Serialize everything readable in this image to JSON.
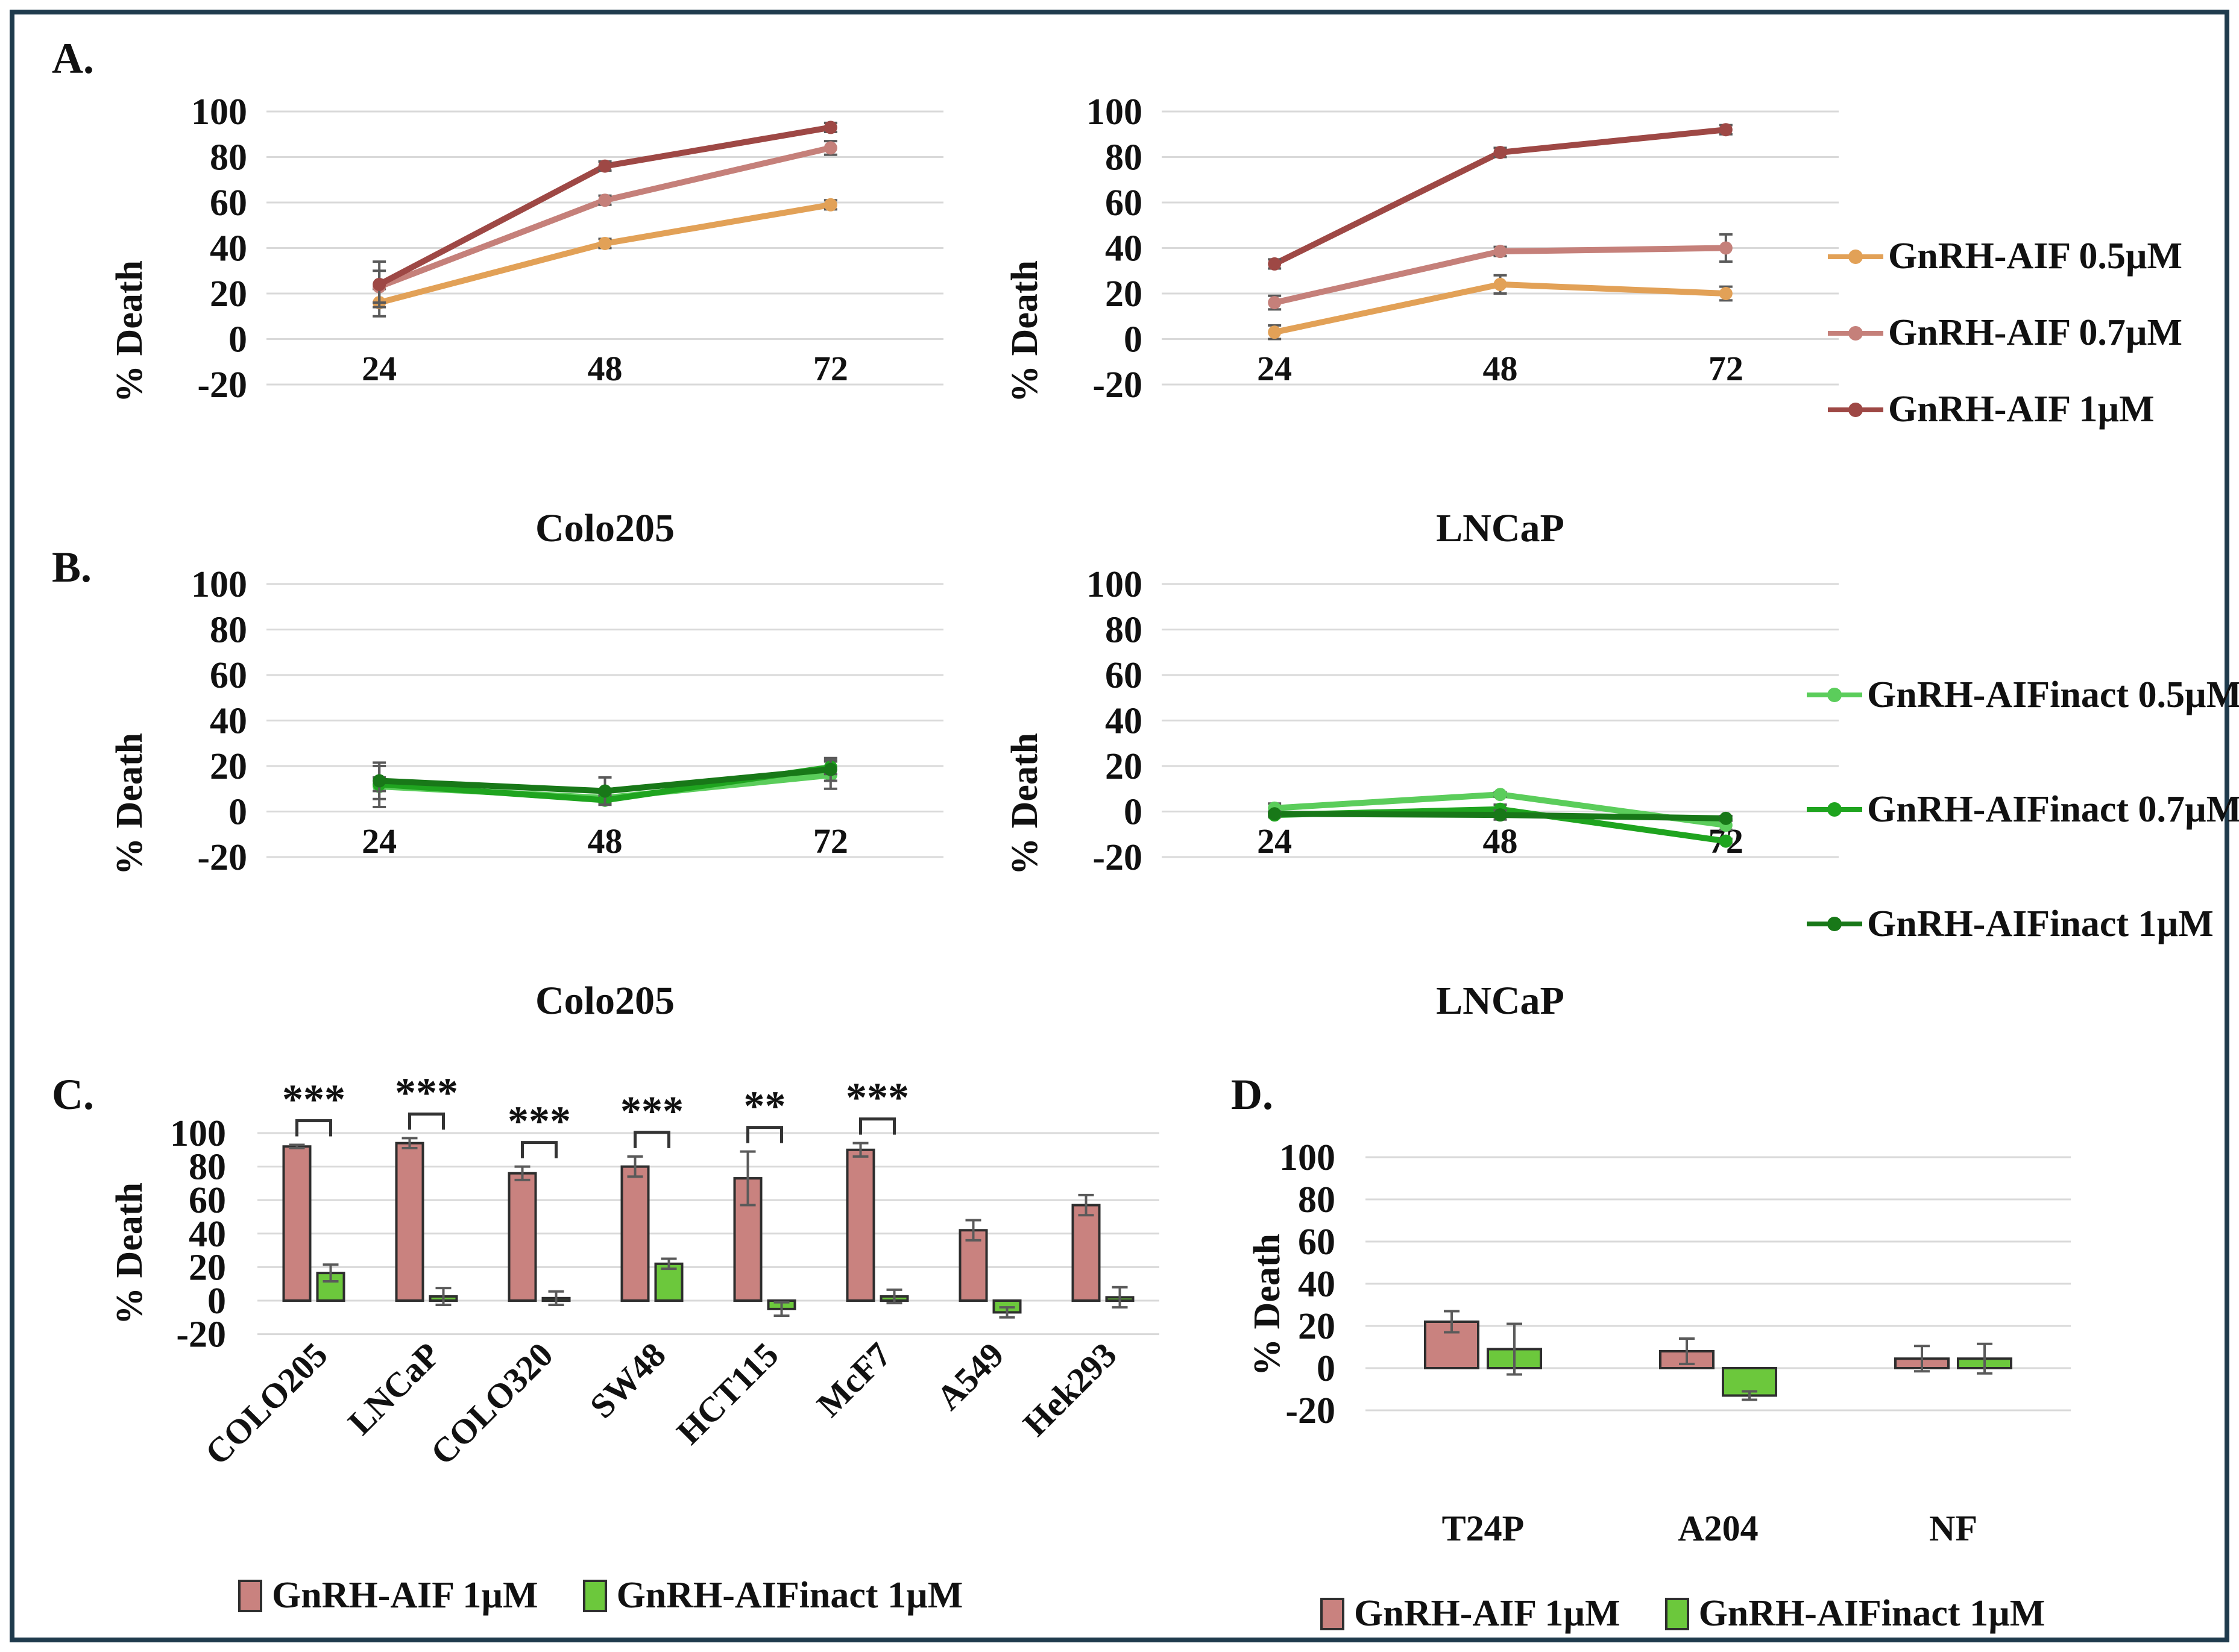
{
  "figure": {
    "panel_labels": {
      "A": "A.",
      "B": "B.",
      "C": "C.",
      "D": "D."
    }
  },
  "colors": {
    "frame_border": "#1F3B4D",
    "gridline": "#D9D9D9",
    "error_bar": "#5A5A5A",
    "bar_border": "#2E2E2E",
    "aif_05": "#E2A157",
    "aif_07": "#C5807A",
    "aif_1": "#9E4845",
    "inact_05": "#5BCD5B",
    "inact_07": "#1FA41F",
    "inact_1": "#187818",
    "bar_red": "#C9827F",
    "bar_green": "#6CC83C"
  },
  "legends": {
    "A": {
      "items": [
        {
          "label": "GnRH-AIF 0.5µM",
          "color": "#E2A157"
        },
        {
          "label": "GnRH-AIF 0.7µM",
          "color": "#C5807A"
        },
        {
          "label": "GnRH-AIF 1µM",
          "color": "#9E4845"
        }
      ]
    },
    "B": {
      "items": [
        {
          "label": "GnRH-AIFinact 0.5µM",
          "color": "#5BCD5B"
        },
        {
          "label": "GnRH-AIFinact 0.7µM",
          "color": "#1FA41F"
        },
        {
          "label": "GnRH-AIFinact 1µM",
          "color": "#187818"
        }
      ]
    },
    "C": {
      "items": [
        {
          "label": "GnRH-AIF 1µM",
          "color": "#C9827F"
        },
        {
          "label": "GnRH-AIFinact 1µM",
          "color": "#6CC83C"
        }
      ]
    },
    "D": {
      "items": [
        {
          "label": "GnRH-AIF 1µM",
          "color": "#C9827F"
        },
        {
          "label": "GnRH-AIFinact 1µM",
          "color": "#6CC83C"
        }
      ]
    }
  },
  "chart_data": [
    {
      "id": "A-colo205",
      "type": "line",
      "title": "Colo205",
      "ylabel": "% Death",
      "ylim": [
        -20,
        100
      ],
      "yticks": [
        100,
        80,
        60,
        40,
        20,
        0,
        -20
      ],
      "x": [
        24,
        48,
        72
      ],
      "grid": true,
      "legend_position": "right-of-panel",
      "series": [
        {
          "name": "GnRH-AIF 0.5µM",
          "color": "#E2A157",
          "values": [
            16,
            42,
            59
          ],
          "errors": [
            6,
            2,
            2
          ]
        },
        {
          "name": "GnRH-AIF 0.7µM",
          "color": "#C5807A",
          "values": [
            23,
            61,
            84
          ],
          "errors": [
            7,
            2,
            3
          ]
        },
        {
          "name": "GnRH-AIF 1µM",
          "color": "#9E4845",
          "values": [
            24,
            76,
            93
          ],
          "errors": [
            10,
            2,
            2
          ]
        }
      ]
    },
    {
      "id": "A-lncap",
      "type": "line",
      "title": "LNCaP",
      "ylabel": "% Death",
      "ylim": [
        -20,
        100
      ],
      "yticks": [
        100,
        80,
        60,
        40,
        20,
        0,
        -20
      ],
      "x": [
        24,
        48,
        72
      ],
      "grid": true,
      "series": [
        {
          "name": "GnRH-AIF 0.5µM",
          "color": "#E2A157",
          "values": [
            3,
            24,
            20
          ],
          "errors": [
            3,
            4,
            3
          ]
        },
        {
          "name": "GnRH-AIF 0.7µM",
          "color": "#C5807A",
          "values": [
            16,
            38.5,
            40
          ],
          "errors": [
            3,
            2,
            6
          ]
        },
        {
          "name": "GnRH-AIF 1µM",
          "color": "#9E4845",
          "values": [
            33,
            82,
            92
          ],
          "errors": [
            2,
            2,
            2
          ]
        }
      ]
    },
    {
      "id": "B-colo205",
      "type": "line",
      "title": "Colo205",
      "ylabel": "% Death",
      "ylim": [
        -20,
        100
      ],
      "yticks": [
        100,
        80,
        60,
        40,
        20,
        0,
        -20
      ],
      "x": [
        24,
        48,
        72
      ],
      "grid": true,
      "series": [
        {
          "name": "GnRH-AIFinact 0.5µM",
          "color": "#5BCD5B",
          "values": [
            11,
            6,
            16
          ],
          "errors": [
            9,
            2,
            6
          ]
        },
        {
          "name": "GnRH-AIFinact 0.7µM",
          "color": "#1FA41F",
          "values": [
            12,
            5,
            19.5
          ],
          "errors": [
            3,
            2,
            3
          ]
        },
        {
          "name": "GnRH-AIFinact 1µM",
          "color": "#187818",
          "values": [
            13.5,
            9,
            18.5
          ],
          "errors": [
            8,
            6,
            5
          ]
        }
      ]
    },
    {
      "id": "B-lncap",
      "type": "line",
      "title": "LNCaP",
      "ylabel": "% Death",
      "ylim": [
        -20,
        100
      ],
      "yticks": [
        100,
        80,
        60,
        40,
        20,
        0,
        -20
      ],
      "x": [
        24,
        48,
        72
      ],
      "grid": true,
      "series": [
        {
          "name": "GnRH-AIFinact 0.5µM",
          "color": "#5BCD5B",
          "values": [
            1.5,
            7.5,
            -6
          ],
          "errors": [
            2,
            1,
            2
          ]
        },
        {
          "name": "GnRH-AIFinact 0.7µM",
          "color": "#1FA41F",
          "values": [
            -1.5,
            1,
            -13
          ],
          "errors": [
            1,
            2,
            1
          ]
        },
        {
          "name": "GnRH-AIFinact 1µM",
          "color": "#187818",
          "values": [
            -1,
            -1.5,
            -3
          ],
          "errors": [
            1,
            2,
            1
          ]
        }
      ]
    },
    {
      "id": "C",
      "type": "bar",
      "title": "",
      "ylabel": "% Death",
      "ylim": [
        -20,
        100
      ],
      "yticks": [
        100,
        80,
        60,
        40,
        20,
        0,
        -20
      ],
      "categories": [
        "COLO205",
        "LNCaP",
        "COLO320",
        "SW48",
        "HCT115",
        "McF7",
        "A549",
        "Hek293"
      ],
      "significance": [
        "***",
        "***",
        "***",
        "***",
        "**",
        "***",
        "",
        ""
      ],
      "grid": true,
      "legend_position": "bottom",
      "series": [
        {
          "name": "GnRH-AIF 1µM",
          "color": "#C9827F",
          "values": [
            92,
            94,
            76,
            80,
            73,
            90,
            42,
            57
          ],
          "errors": [
            1,
            3,
            4,
            6,
            16,
            4,
            6,
            6
          ]
        },
        {
          "name": "GnRH-AIFinact 1µM",
          "color": "#6CC83C",
          "values": [
            16.5,
            2.5,
            1.5,
            22,
            -5,
            2.5,
            -7,
            2
          ],
          "errors": [
            5,
            5,
            4,
            3,
            4,
            4,
            3,
            6
          ]
        }
      ]
    },
    {
      "id": "D",
      "type": "bar",
      "title": "",
      "ylabel": "% Death",
      "ylim": [
        -20,
        100
      ],
      "yticks": [
        100,
        80,
        60,
        40,
        20,
        0,
        -20
      ],
      "categories": [
        "T24P",
        "A204",
        "NF"
      ],
      "significance": [
        "",
        "",
        ""
      ],
      "grid": true,
      "legend_position": "bottom",
      "series": [
        {
          "name": "GnRH-AIF 1µM",
          "color": "#C9827F",
          "values": [
            22,
            8,
            4.5
          ],
          "errors": [
            5,
            6,
            6
          ]
        },
        {
          "name": "GnRH-AIFinact 1µM",
          "color": "#6CC83C",
          "values": [
            9,
            -13,
            4.5
          ],
          "errors": [
            12,
            2,
            7
          ]
        }
      ]
    }
  ]
}
